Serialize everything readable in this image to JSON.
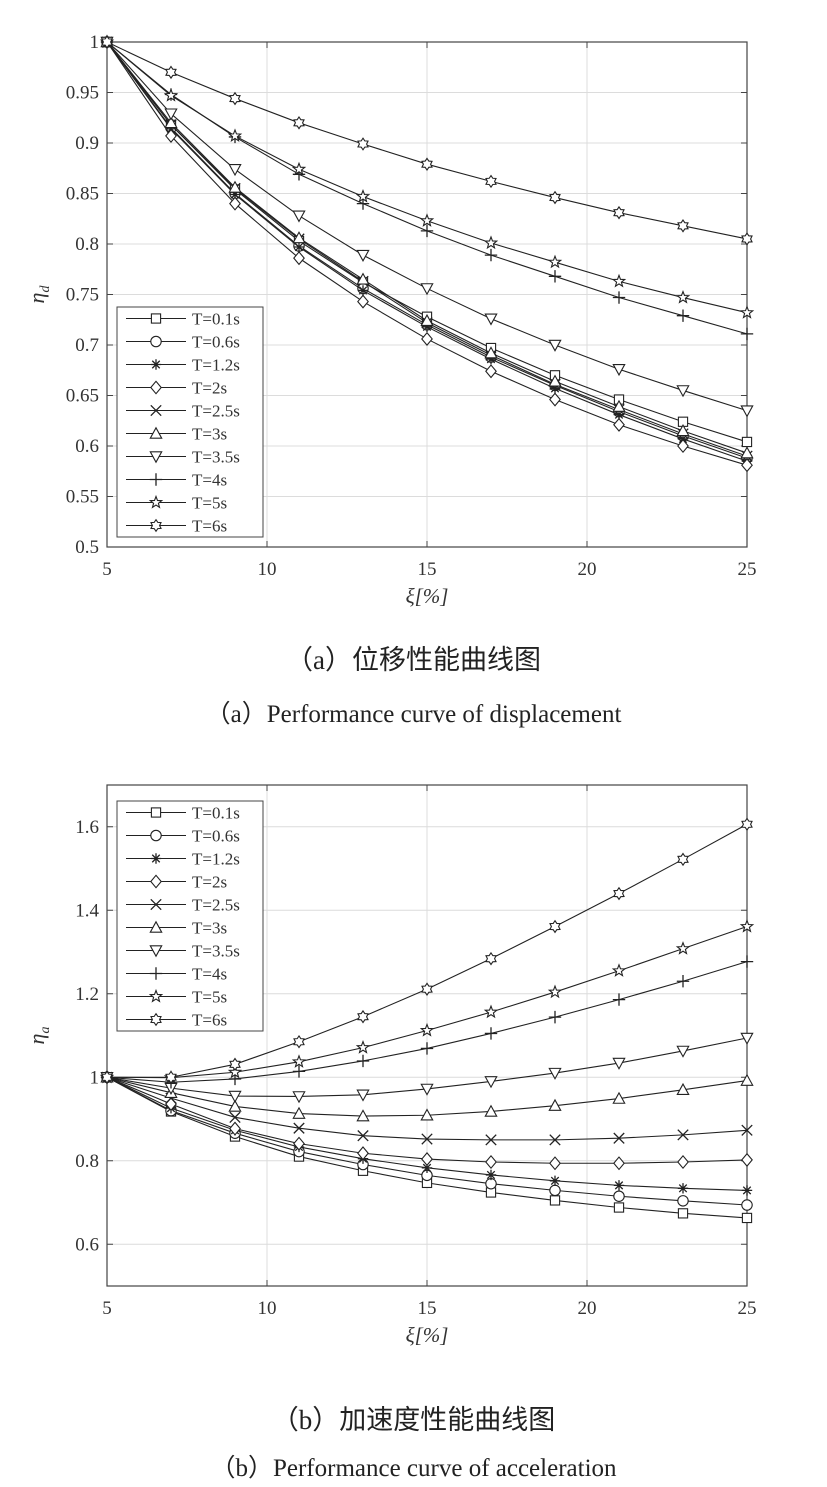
{
  "panels": [
    {
      "caption_cn": "（a）位移性能曲线图",
      "caption_en": "（a）Performance curve of displacement"
    },
    {
      "caption_cn": "（b）加速度性能曲线图",
      "caption_en": "（b）Performance curve of acceleration"
    }
  ],
  "chart_data": [
    {
      "type": "line",
      "title": "",
      "xlabel": "ξ[%]",
      "ylabel": "η_d",
      "xlim": [
        5,
        25
      ],
      "ylim": [
        0.5,
        1.0
      ],
      "xticks": [
        5,
        10,
        15,
        20,
        25
      ],
      "yticks": [
        0.5,
        0.55,
        0.6,
        0.65,
        0.7,
        0.75,
        0.8,
        0.85,
        0.9,
        0.95,
        1
      ],
      "ytick_labels": [
        "0.5",
        "0.55",
        "0.6",
        "0.65",
        "0.7",
        "0.75",
        "0.8",
        "0.85",
        "0.9",
        "0.95",
        "1"
      ],
      "grid": true,
      "legend_position": "bottom-left",
      "x": [
        5,
        7,
        9,
        11,
        13,
        15,
        17,
        19,
        21,
        23,
        25
      ],
      "series": [
        {
          "name": "T=0.1s",
          "marker": "square",
          "values": [
            1.0,
            0.918,
            0.854,
            0.803,
            0.762,
            0.728,
            0.697,
            0.67,
            0.646,
            0.624,
            0.604
          ]
        },
        {
          "name": "T=0.6s",
          "marker": "circle",
          "values": [
            1.0,
            0.915,
            0.85,
            0.798,
            0.756,
            0.72,
            0.688,
            0.66,
            0.634,
            0.61,
            0.588
          ]
        },
        {
          "name": "T=1.2s",
          "marker": "asterisk",
          "values": [
            1.0,
            0.914,
            0.849,
            0.797,
            0.754,
            0.718,
            0.686,
            0.657,
            0.631,
            0.607,
            0.585
          ]
        },
        {
          "name": "T=2s",
          "marker": "diamond",
          "values": [
            1.0,
            0.907,
            0.84,
            0.786,
            0.743,
            0.706,
            0.674,
            0.646,
            0.621,
            0.6,
            0.581
          ]
        },
        {
          "name": "T=2.5s",
          "marker": "x",
          "values": [
            1.0,
            0.918,
            0.855,
            0.805,
            0.763,
            0.722,
            0.69,
            0.661,
            0.636,
            0.612,
            0.59
          ]
        },
        {
          "name": "T=3s",
          "marker": "triangle-up",
          "values": [
            1.0,
            0.92,
            0.856,
            0.806,
            0.765,
            0.724,
            0.692,
            0.664,
            0.639,
            0.615,
            0.593
          ]
        },
        {
          "name": "T=3.5s",
          "marker": "triangle-down",
          "values": [
            1.0,
            0.929,
            0.874,
            0.828,
            0.789,
            0.756,
            0.726,
            0.7,
            0.676,
            0.655,
            0.635
          ]
        },
        {
          "name": "T=4s",
          "marker": "plus",
          "values": [
            1.0,
            0.948,
            0.906,
            0.869,
            0.84,
            0.813,
            0.789,
            0.768,
            0.747,
            0.729,
            0.711
          ]
        },
        {
          "name": "T=5s",
          "marker": "pentagram",
          "values": [
            1.0,
            0.947,
            0.907,
            0.874,
            0.847,
            0.823,
            0.801,
            0.782,
            0.763,
            0.747,
            0.732
          ]
        },
        {
          "name": "T=6s",
          "marker": "hexagram",
          "values": [
            1.0,
            0.97,
            0.944,
            0.92,
            0.899,
            0.879,
            0.862,
            0.846,
            0.831,
            0.818,
            0.805
          ]
        }
      ]
    },
    {
      "type": "line",
      "title": "",
      "xlabel": "ξ[%]",
      "ylabel": "η_a",
      "xlim": [
        5,
        25
      ],
      "ylim": [
        0.5,
        1.7
      ],
      "xticks": [
        5,
        10,
        15,
        20,
        25
      ],
      "yticks": [
        0.6,
        0.8,
        1.0,
        1.2,
        1.4,
        1.6
      ],
      "ytick_labels": [
        "0.6",
        "0.8",
        "1",
        "1.2",
        "1.4",
        "1.6"
      ],
      "grid": true,
      "legend_position": "top-left",
      "x": [
        5,
        7,
        9,
        11,
        13,
        15,
        17,
        19,
        21,
        23,
        25
      ],
      "series": [
        {
          "name": "T=0.1s",
          "marker": "square",
          "values": [
            1.0,
            0.918,
            0.858,
            0.81,
            0.776,
            0.747,
            0.724,
            0.705,
            0.688,
            0.674,
            0.663
          ]
        },
        {
          "name": "T=0.6s",
          "marker": "circle",
          "values": [
            1.0,
            0.92,
            0.866,
            0.822,
            0.791,
            0.765,
            0.745,
            0.729,
            0.715,
            0.704,
            0.694
          ]
        },
        {
          "name": "T=1.2s",
          "marker": "asterisk",
          "values": [
            1.0,
            0.926,
            0.873,
            0.833,
            0.805,
            0.783,
            0.766,
            0.752,
            0.741,
            0.734,
            0.729
          ]
        },
        {
          "name": "T=2s",
          "marker": "diamond",
          "values": [
            1.0,
            0.936,
            0.877,
            0.841,
            0.818,
            0.804,
            0.797,
            0.794,
            0.794,
            0.797,
            0.802
          ]
        },
        {
          "name": "T=2.5s",
          "marker": "x",
          "values": [
            1.0,
            0.95,
            0.904,
            0.878,
            0.86,
            0.852,
            0.85,
            0.85,
            0.854,
            0.862,
            0.873
          ]
        },
        {
          "name": "T=3s",
          "marker": "triangle-up",
          "values": [
            1.0,
            0.963,
            0.93,
            0.913,
            0.907,
            0.909,
            0.918,
            0.932,
            0.949,
            0.97,
            0.992
          ]
        },
        {
          "name": "T=3.5s",
          "marker": "triangle-down",
          "values": [
            1.0,
            0.974,
            0.955,
            0.954,
            0.958,
            0.972,
            0.99,
            1.01,
            1.034,
            1.063,
            1.094
          ]
        },
        {
          "name": "T=4s",
          "marker": "plus",
          "values": [
            1.0,
            0.988,
            0.996,
            1.014,
            1.039,
            1.069,
            1.105,
            1.144,
            1.186,
            1.23,
            1.277
          ]
        },
        {
          "name": "T=5s",
          "marker": "pentagram",
          "values": [
            1.0,
            0.999,
            1.012,
            1.037,
            1.071,
            1.112,
            1.156,
            1.204,
            1.255,
            1.308,
            1.361
          ]
        },
        {
          "name": "T=6s",
          "marker": "hexagram",
          "values": [
            1.0,
            1.0,
            1.031,
            1.085,
            1.145,
            1.211,
            1.284,
            1.361,
            1.44,
            1.522,
            1.606
          ]
        }
      ]
    }
  ]
}
